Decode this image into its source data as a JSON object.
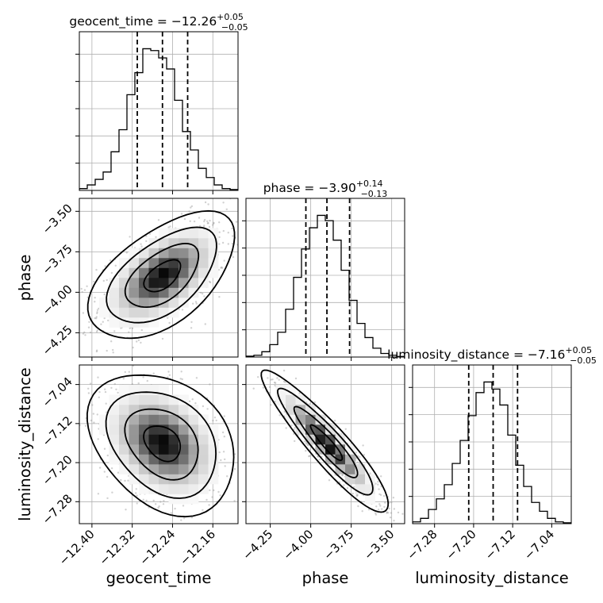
{
  "chart_data": {
    "type": "corner",
    "parameters": [
      "geocent_time",
      "phase",
      "luminosity_distance"
    ],
    "titles": [
      {
        "param": "geocent_time",
        "prefix": "geocent_time = −12.26",
        "plus": "+0.05",
        "minus": "−0.05"
      },
      {
        "param": "phase",
        "prefix": "phase = −3.90",
        "plus": "+0.14",
        "minus": "−0.13"
      },
      {
        "param": "luminosity_distance",
        "prefix": "luminosity_distance = −7.16",
        "plus": "+0.05",
        "minus": "−0.05"
      }
    ],
    "axis_ranges": {
      "geocent_time": [
        -12.425,
        -12.11
      ],
      "phase": [
        -4.4,
        -3.42
      ],
      "luminosity_distance": [
        -7.325,
        -7.0
      ]
    },
    "ticks": {
      "geocent_time": {
        "values": [
          -12.4,
          -12.32,
          -12.24,
          -12.16
        ],
        "labels": [
          "−12.40",
          "−12.32",
          "−12.24",
          "−12.16"
        ]
      },
      "phase": {
        "values": [
          -4.25,
          -4.0,
          -3.75,
          -3.5
        ],
        "labels": [
          "−4.25",
          "−4.00",
          "−3.75",
          "−3.50"
        ]
      },
      "luminosity_distance": {
        "values": [
          -7.28,
          -7.2,
          -7.12,
          -7.04
        ],
        "labels": [
          "−7.28",
          "−7.20",
          "−7.12",
          "−7.04"
        ]
      }
    },
    "quantiles": {
      "geocent_time": [
        -12.31,
        -12.26,
        -12.21
      ],
      "phase": [
        -4.03,
        -3.9,
        -3.76
      ],
      "luminosity_distance": [
        -7.21,
        -7.16,
        -7.11
      ]
    },
    "histograms": {
      "geocent_time": {
        "edges": [
          -12.425,
          -12.40925,
          -12.3935,
          -12.37775,
          -12.362,
          -12.34625,
          -12.3305,
          -12.31475,
          -12.299,
          -12.28325,
          -12.2675,
          -12.25175,
          -12.236,
          -12.22025,
          -12.2045,
          -12.18875,
          -12.173,
          -12.15725,
          -12.1415,
          -12.12575,
          -12.11
        ],
        "counts": [
          1,
          3,
          6,
          10,
          21,
          33,
          52,
          64,
          77,
          76,
          72,
          66,
          49,
          32,
          22,
          12,
          7,
          3,
          1,
          0.5
        ]
      },
      "phase": {
        "edges": [
          -4.4,
          -4.351,
          -4.302,
          -4.253,
          -4.204,
          -4.155,
          -4.106,
          -4.057,
          -4.008,
          -3.959,
          -3.91,
          -3.861,
          -3.812,
          -3.763,
          -3.714,
          -3.665,
          -3.616,
          -3.567,
          -3.518,
          -3.469,
          -3.42
        ],
        "counts": [
          0.5,
          1,
          3,
          7,
          14,
          27,
          45,
          61,
          73,
          80,
          77,
          66,
          49,
          32,
          19,
          11,
          5,
          2,
          1,
          0.3
        ]
      },
      "luminosity_distance": {
        "edges": [
          -7.325,
          -7.30875,
          -7.2925,
          -7.27625,
          -7.26,
          -7.24375,
          -7.2275,
          -7.21125,
          -7.195,
          -7.17875,
          -7.1625,
          -7.14625,
          -7.13,
          -7.11375,
          -7.0975,
          -7.08125,
          -7.065,
          -7.04875,
          -7.0325,
          -7.01625,
          -7.0
        ],
        "counts": [
          1,
          3,
          8,
          14,
          22,
          34,
          47,
          61,
          74,
          80,
          76,
          67,
          50,
          33,
          21,
          12,
          7,
          3,
          1,
          0.5
        ]
      }
    },
    "posterior": {
      "geocent_time": {
        "mean": -12.26,
        "sd": 0.05
      },
      "phase": {
        "mean": -3.9,
        "sd": 0.135
      },
      "luminosity_distance": {
        "mean": -7.16,
        "sd": 0.05
      },
      "correlation": {
        "geocent_time|phase": 0.55,
        "geocent_time|luminosity_distance": -0.3,
        "phase|luminosity_distance": -0.92
      }
    },
    "contour_levels_sigma": [
      0.5,
      1.0,
      1.5,
      2.0
    ],
    "scatter_points": 900,
    "grid": true,
    "colors": {
      "lines": "#000000",
      "grid": "#b0b0b0",
      "scatter": "#9a9a9a"
    }
  }
}
